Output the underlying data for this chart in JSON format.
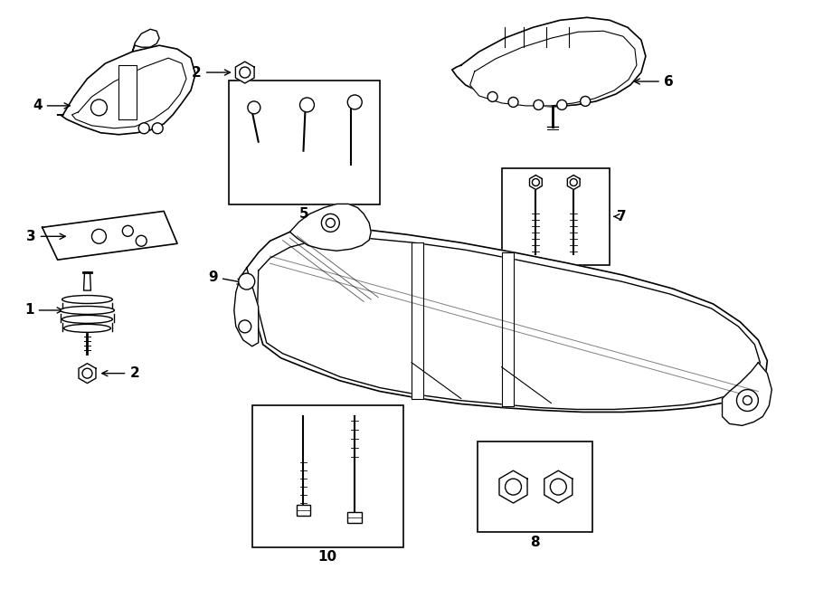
{
  "bg_color": "#ffffff",
  "line_color": "#000000",
  "lw": 1.0,
  "fig_width": 9.0,
  "fig_height": 6.61,
  "dpi": 100
}
